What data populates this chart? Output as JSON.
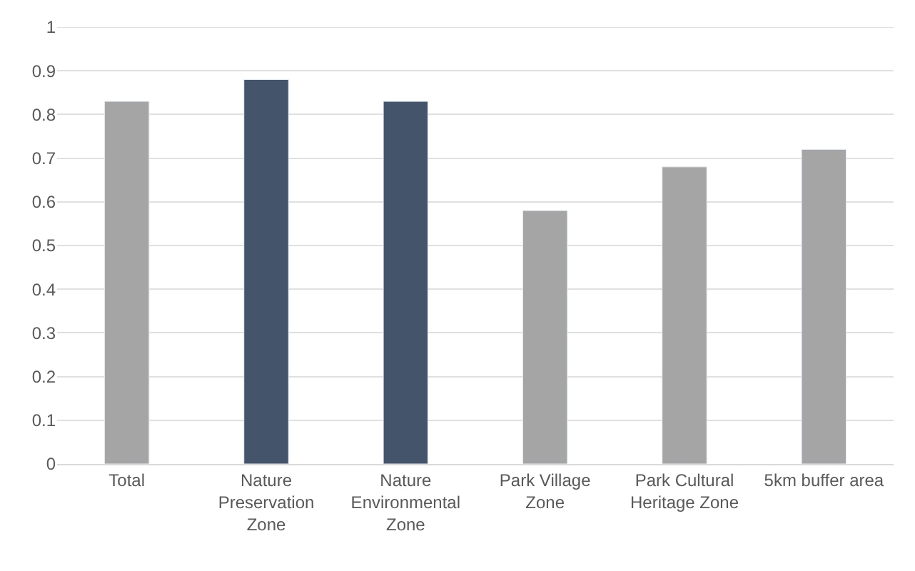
{
  "chart_data": {
    "type": "bar",
    "categories": [
      "Total",
      "Nature Preservation Zone",
      "Nature Environmental Zone",
      "Park Village Zone",
      "Park Cultural Heritage Zone",
      "5km buffer area"
    ],
    "values": [
      0.83,
      0.88,
      0.83,
      0.58,
      0.68,
      0.72
    ],
    "colors": [
      "#a5a5a5",
      "#44546a",
      "#44546a",
      "#a5a5a5",
      "#a5a5a5",
      "#a5a5a5"
    ],
    "ylim": [
      0,
      1
    ],
    "yticks": [
      0,
      0.1,
      0.2,
      0.3,
      0.4,
      0.5,
      0.6,
      0.7,
      0.8,
      0.9,
      1
    ],
    "grid": "y"
  }
}
